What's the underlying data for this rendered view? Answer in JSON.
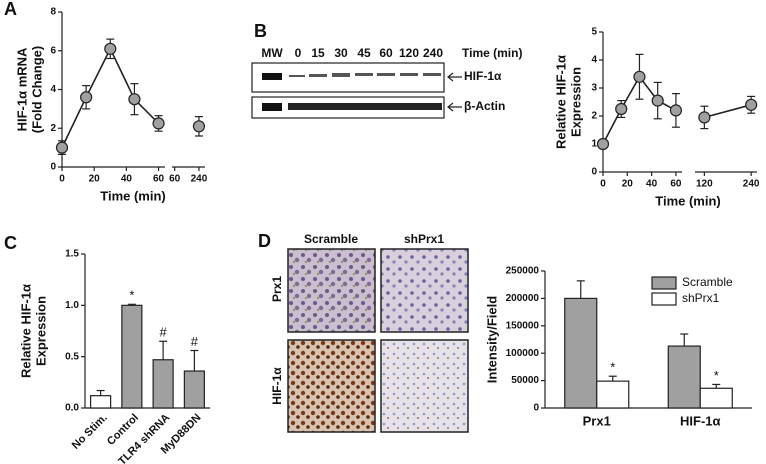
{
  "panel_labels": [
    "A",
    "B",
    "C",
    "D"
  ],
  "blot": {
    "marker_lane": "MW",
    "lanes": [
      "0",
      "15",
      "30",
      "45",
      "60",
      "120",
      "240"
    ],
    "axis_label": "Time (min)",
    "bands": [
      "HIF-1α",
      "β-Actin"
    ]
  },
  "images": {
    "columns": [
      "Scramble",
      "shPrx1"
    ],
    "rows": [
      "Prx1",
      "HIF-1α"
    ]
  },
  "chart_data": [
    {
      "type": "line",
      "y_label": [
        "HIF-1α mRNA",
        "(Fold Change)"
      ],
      "x_label": "Time (min)",
      "x": [
        0,
        15,
        30,
        45,
        60,
        240
      ],
      "values": [
        1.0,
        3.6,
        6.1,
        3.5,
        2.25,
        2.1
      ],
      "errors": [
        0.35,
        0.6,
        0.5,
        0.8,
        0.4,
        0.5
      ],
      "color": "#a0a0a0",
      "ylim": [
        0,
        8
      ],
      "yticks": [
        0,
        2,
        4,
        6,
        8
      ],
      "x_segments": [
        {
          "xlim": [
            0,
            64
          ],
          "xticks": [
            0,
            20,
            40,
            60
          ]
        },
        {
          "xlim": [
            40,
            285
          ],
          "xticks": [
            60,
            240
          ]
        }
      ]
    },
    {
      "type": "line",
      "y_label": [
        "Relative HIF-1α",
        "Expression"
      ],
      "x_label": "Time (min)",
      "x": [
        0,
        15,
        30,
        45,
        60,
        120,
        240
      ],
      "values": [
        1.0,
        2.25,
        3.4,
        2.55,
        2.2,
        1.95,
        2.4
      ],
      "errors": [
        0.1,
        0.3,
        0.8,
        0.65,
        0.6,
        0.4,
        0.3
      ],
      "color": "#a0a0a0",
      "ylim": [
        0,
        5
      ],
      "yticks": [
        0,
        1,
        2,
        3,
        4,
        5
      ],
      "x_segments": [
        {
          "xlim": [
            0,
            65
          ],
          "xticks": [
            0,
            20,
            40,
            60
          ]
        },
        {
          "xlim": [
            96,
            255
          ],
          "xticks": [
            120,
            240
          ]
        }
      ]
    },
    {
      "type": "bar",
      "y_label": [
        "Relative HIF-1α",
        "Expression"
      ],
      "categories": [
        "No Stim.",
        "Control",
        "TLR4 shRNA",
        "MyD88DN"
      ],
      "values": [
        0.12,
        1.0,
        0.47,
        0.36
      ],
      "errors": [
        0.05,
        0.01,
        0.18,
        0.2
      ],
      "annotations": [
        null,
        "*",
        "#",
        "#"
      ],
      "colors": [
        "#ffffff",
        "#a0a0a0",
        "#a0a0a0",
        "#a0a0a0"
      ],
      "ylim": [
        0,
        1.5
      ],
      "yticks": [
        {
          "value": 0,
          "label": "0.0"
        },
        {
          "value": 0.5,
          "label": "0.5"
        },
        {
          "value": 1,
          "label": "1.0"
        },
        {
          "value": 1.5,
          "label": "1.5"
        }
      ]
    },
    {
      "type": "grouped_bar",
      "y_label": "Intensity/Field",
      "categories": [
        "Prx1",
        "HIF-1α"
      ],
      "series": [
        {
          "name": "Scramble",
          "color": "#a0a0a0",
          "values": [
            200000,
            113000
          ],
          "errors": [
            32000,
            22000
          ],
          "annotations": [
            null,
            null
          ]
        },
        {
          "name": "shPrx1",
          "color": "#ffffff",
          "values": [
            49000,
            36000
          ],
          "errors": [
            9000,
            7000
          ],
          "annotations": [
            "*",
            "*"
          ]
        }
      ],
      "ylim": [
        0,
        250000
      ],
      "yticks": [
        0,
        50000,
        100000,
        150000,
        200000,
        250000
      ],
      "legend": "top-right"
    }
  ]
}
